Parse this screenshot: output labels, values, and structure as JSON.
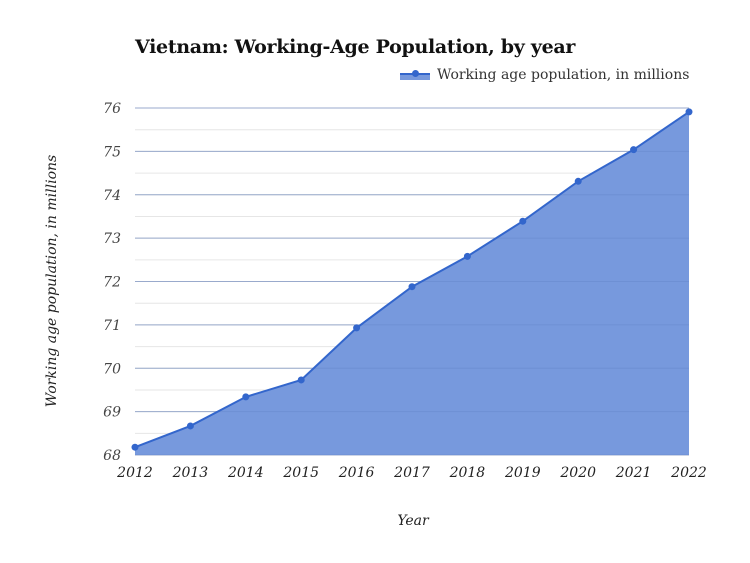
{
  "chart_data": {
    "type": "area",
    "title": "Vietnam: Working-Age Population, by year",
    "xlabel": "Year",
    "ylabel": "Working age population, in millions",
    "categories": [
      "2012",
      "2013",
      "2014",
      "2015",
      "2016",
      "2017",
      "2018",
      "2019",
      "2020",
      "2021",
      "2022"
    ],
    "series": [
      {
        "name": "Working age population, in millions",
        "values": [
          68.18,
          68.67,
          69.34,
          69.73,
          70.93,
          71.88,
          72.58,
          73.39,
          74.31,
          75.04,
          75.91
        ]
      }
    ],
    "ylim": [
      68,
      76
    ],
    "yticks": [
      "68",
      "69",
      "70",
      "71",
      "72",
      "73",
      "74",
      "75",
      "76"
    ],
    "grid": true,
    "legend_position": "top-right",
    "colors": {
      "fill": "#7799dd",
      "line": "#3366cc",
      "grid_major": "#cccccc",
      "grid_minor": "#e6e6e6"
    }
  }
}
